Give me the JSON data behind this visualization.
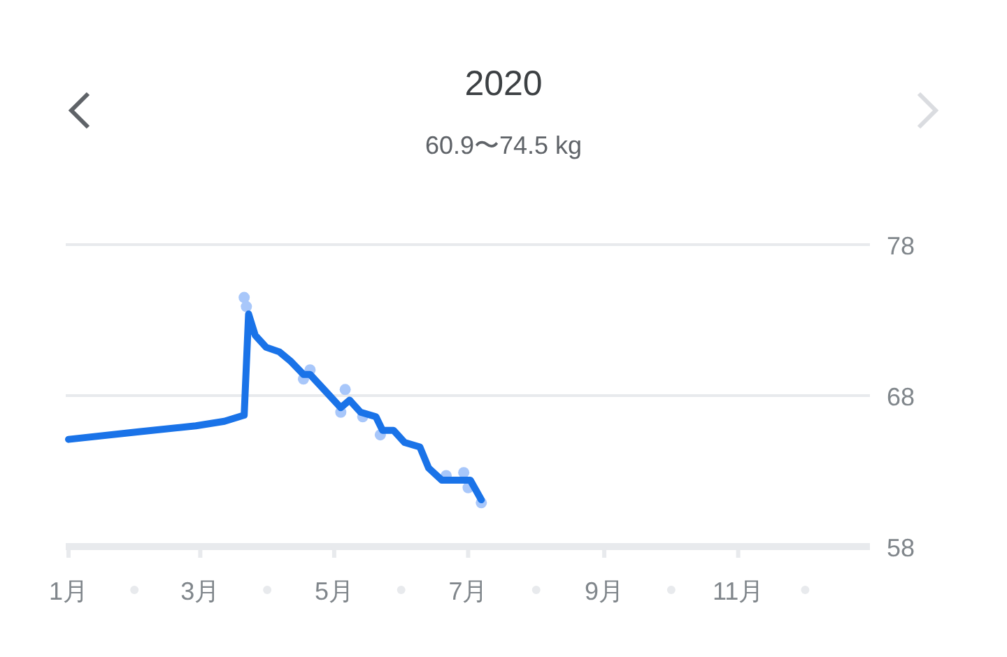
{
  "chart_data": {
    "type": "line",
    "title": "2020",
    "subtitle": "60.9〜74.5 kg",
    "xlim": [
      "2020-01-01",
      "2020-12-31"
    ],
    "ylim": [
      58,
      78
    ],
    "yticks": [
      58,
      68,
      78
    ],
    "xticks": [
      {
        "value": "2020-01-01",
        "label": "1月"
      },
      {
        "value": "2020-03-01",
        "label": "3月"
      },
      {
        "value": "2020-05-01",
        "label": "5月"
      },
      {
        "value": "2020-07-01",
        "label": "7月"
      },
      {
        "value": "2020-09-01",
        "label": "9月"
      },
      {
        "value": "2020-11-01",
        "label": "11月"
      }
    ],
    "grid": "y",
    "series": [
      {
        "type": "scatter",
        "marker": "circle",
        "color": "#a8c7fa",
        "x": [
          "2020-03-21",
          "2020-03-22",
          "2020-03-23",
          "2020-04-17",
          "2020-04-20",
          "2020-05-04",
          "2020-05-06",
          "2020-05-14",
          "2020-05-22",
          "2020-06-21",
          "2020-06-29",
          "2020-07-01",
          "2020-07-07"
        ],
        "values": [
          74.5,
          73.9,
          null,
          69.1,
          69.7,
          66.9,
          68.4,
          66.6,
          65.4,
          62.7,
          62.9,
          61.9,
          60.9
        ]
      },
      {
        "color": "#1a73e8",
        "x": [
          "2020-01-01",
          "2020-02-02",
          "2020-02-28",
          "2020-03-12",
          "2020-03-21",
          "2020-03-23",
          "2020-03-26",
          "2020-03-31",
          "2020-04-06",
          "2020-04-11",
          "2020-04-17",
          "2020-04-20",
          "2020-04-27",
          "2020-05-04",
          "2020-05-08",
          "2020-05-13",
          "2020-05-20",
          "2020-05-23",
          "2020-05-28",
          "2020-06-02",
          "2020-06-09",
          "2020-06-13",
          "2020-06-19",
          "2020-06-25",
          "2020-07-02",
          "2020-07-07"
        ],
        "values": [
          65.1,
          65.6,
          66.0,
          66.3,
          66.7,
          73.4,
          72.0,
          71.2,
          70.9,
          70.3,
          69.4,
          69.4,
          68.3,
          67.2,
          67.7,
          66.9,
          66.6,
          65.7,
          65.7,
          64.9,
          64.6,
          63.2,
          62.4,
          62.4,
          62.4,
          61.1
        ]
      }
    ]
  }
}
